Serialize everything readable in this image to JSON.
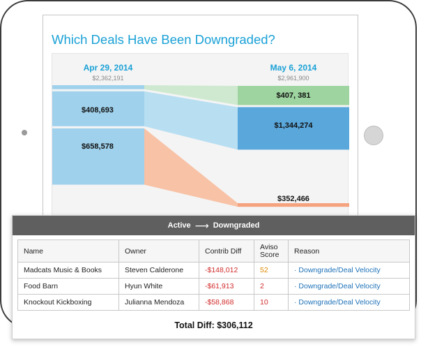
{
  "page_title": "Which Deals Have Been Downgraded?",
  "colors": {
    "accent": "#1aa1d6",
    "left_bar": "#9fd1ec",
    "right_bar": "#5aa7db",
    "active_flow": "#b8def2",
    "upgrade_bar": "#9dd49f",
    "upgrade_flow": "#cfe9d0",
    "downgrade_bar": "#f5a27f",
    "downgrade_flow": "#f8c2a6",
    "negative": "#d22b2b",
    "link": "#1f72b8"
  },
  "chart_data": {
    "type": "sankey",
    "left": {
      "date": "Apr 29, 2014",
      "total": "$2,362,191",
      "nodes": [
        {
          "label": "",
          "value": 47000
        },
        {
          "label": "$408,693",
          "value": 408693
        },
        {
          "label": "$658,578",
          "value": 658578
        }
      ]
    },
    "right": {
      "date": "May 6, 2014",
      "total": "$2,961,900",
      "nodes": [
        {
          "label": "$407, 381",
          "value": 407381
        },
        {
          "label": "$1,344,274",
          "value": 1344274
        },
        {
          "label": "$352,466",
          "value": 352466
        }
      ]
    }
  },
  "panel": {
    "header_from": "Active",
    "header_to": "Downgraded",
    "columns": [
      "Name",
      "Owner",
      "Contrib Diff",
      "Aviso\nScore",
      "Reason"
    ],
    "rows": [
      {
        "name": "Madcats Music & Books",
        "owner": "Steven Calderone",
        "diff": "-$148,012",
        "score": "52",
        "reason": "Downgrade/Deal Velocity"
      },
      {
        "name": "Food Barn",
        "owner": "Hyun White",
        "diff": "-$61,913",
        "score": "2",
        "reason": "Downgrade/Deal Velocity"
      },
      {
        "name": "Knockout Kickboxing",
        "owner": "Julianna Mendoza",
        "diff": "-$58,868",
        "score": "10",
        "reason": "Downgrade/Deal Velocity"
      }
    ],
    "total_label": "Total Diff: $306,112"
  }
}
